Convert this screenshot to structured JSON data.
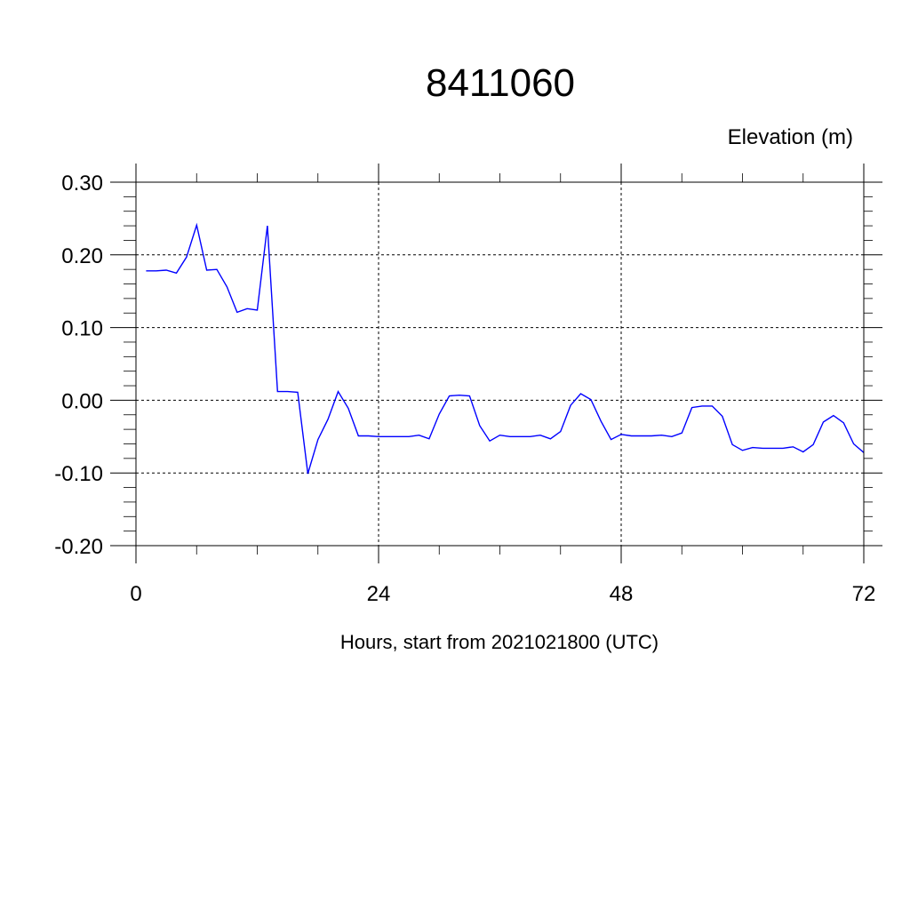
{
  "chart_data": {
    "type": "line",
    "title": "8411060",
    "unit_label": "Elevation (m)",
    "xlabel": "Hours, start from 2021021800 (UTC)",
    "ylabel": "",
    "xlim": [
      0,
      72
    ],
    "ylim": [
      -0.2,
      0.3
    ],
    "xticks": [
      0,
      24,
      48,
      72
    ],
    "xtick_labels": [
      "0",
      "24",
      "48",
      "72"
    ],
    "yticks": [
      -0.2,
      -0.1,
      0.0,
      0.1,
      0.2,
      0.3
    ],
    "ytick_labels": [
      "-0.20",
      "-0.10",
      "0.00",
      "0.10",
      "0.20",
      "0.30"
    ],
    "grid": true,
    "line_color": "#0000ff",
    "series": [
      {
        "x": [
          1,
          2,
          3,
          4,
          5,
          6,
          7,
          8,
          9,
          10,
          11,
          12,
          13,
          14,
          15,
          16,
          17,
          18,
          19,
          20,
          21,
          22,
          23,
          24,
          25,
          26,
          27,
          28,
          29,
          30,
          31,
          32,
          33,
          34,
          35,
          36,
          37,
          38,
          39,
          40,
          41,
          42,
          43,
          44,
          45,
          46,
          47,
          48,
          49,
          50,
          51,
          52,
          53,
          54,
          55,
          56,
          57,
          58,
          59,
          60,
          61,
          62,
          63,
          64,
          65,
          66,
          67,
          68,
          69,
          70,
          71,
          72
        ],
        "values": [
          0.178,
          0.178,
          0.179,
          0.175,
          0.197,
          0.241,
          0.179,
          0.18,
          0.156,
          0.121,
          0.126,
          0.124,
          0.24,
          0.012,
          0.012,
          0.011,
          -0.101,
          -0.054,
          -0.026,
          0.012,
          -0.011,
          -0.049,
          -0.049,
          -0.05,
          -0.05,
          -0.05,
          -0.05,
          -0.048,
          -0.053,
          -0.019,
          0.006,
          0.007,
          0.006,
          -0.035,
          -0.056,
          -0.048,
          -0.05,
          -0.05,
          -0.05,
          -0.048,
          -0.053,
          -0.043,
          -0.007,
          0.009,
          0.001,
          -0.029,
          -0.054,
          -0.047,
          -0.049,
          -0.049,
          -0.049,
          -0.048,
          -0.05,
          -0.045,
          -0.01,
          -0.008,
          -0.008,
          -0.022,
          -0.061,
          -0.069,
          -0.065,
          -0.066,
          -0.066,
          -0.066,
          -0.064,
          -0.071,
          -0.061,
          -0.03,
          -0.021,
          -0.031,
          -0.06,
          -0.072
        ]
      }
    ]
  }
}
